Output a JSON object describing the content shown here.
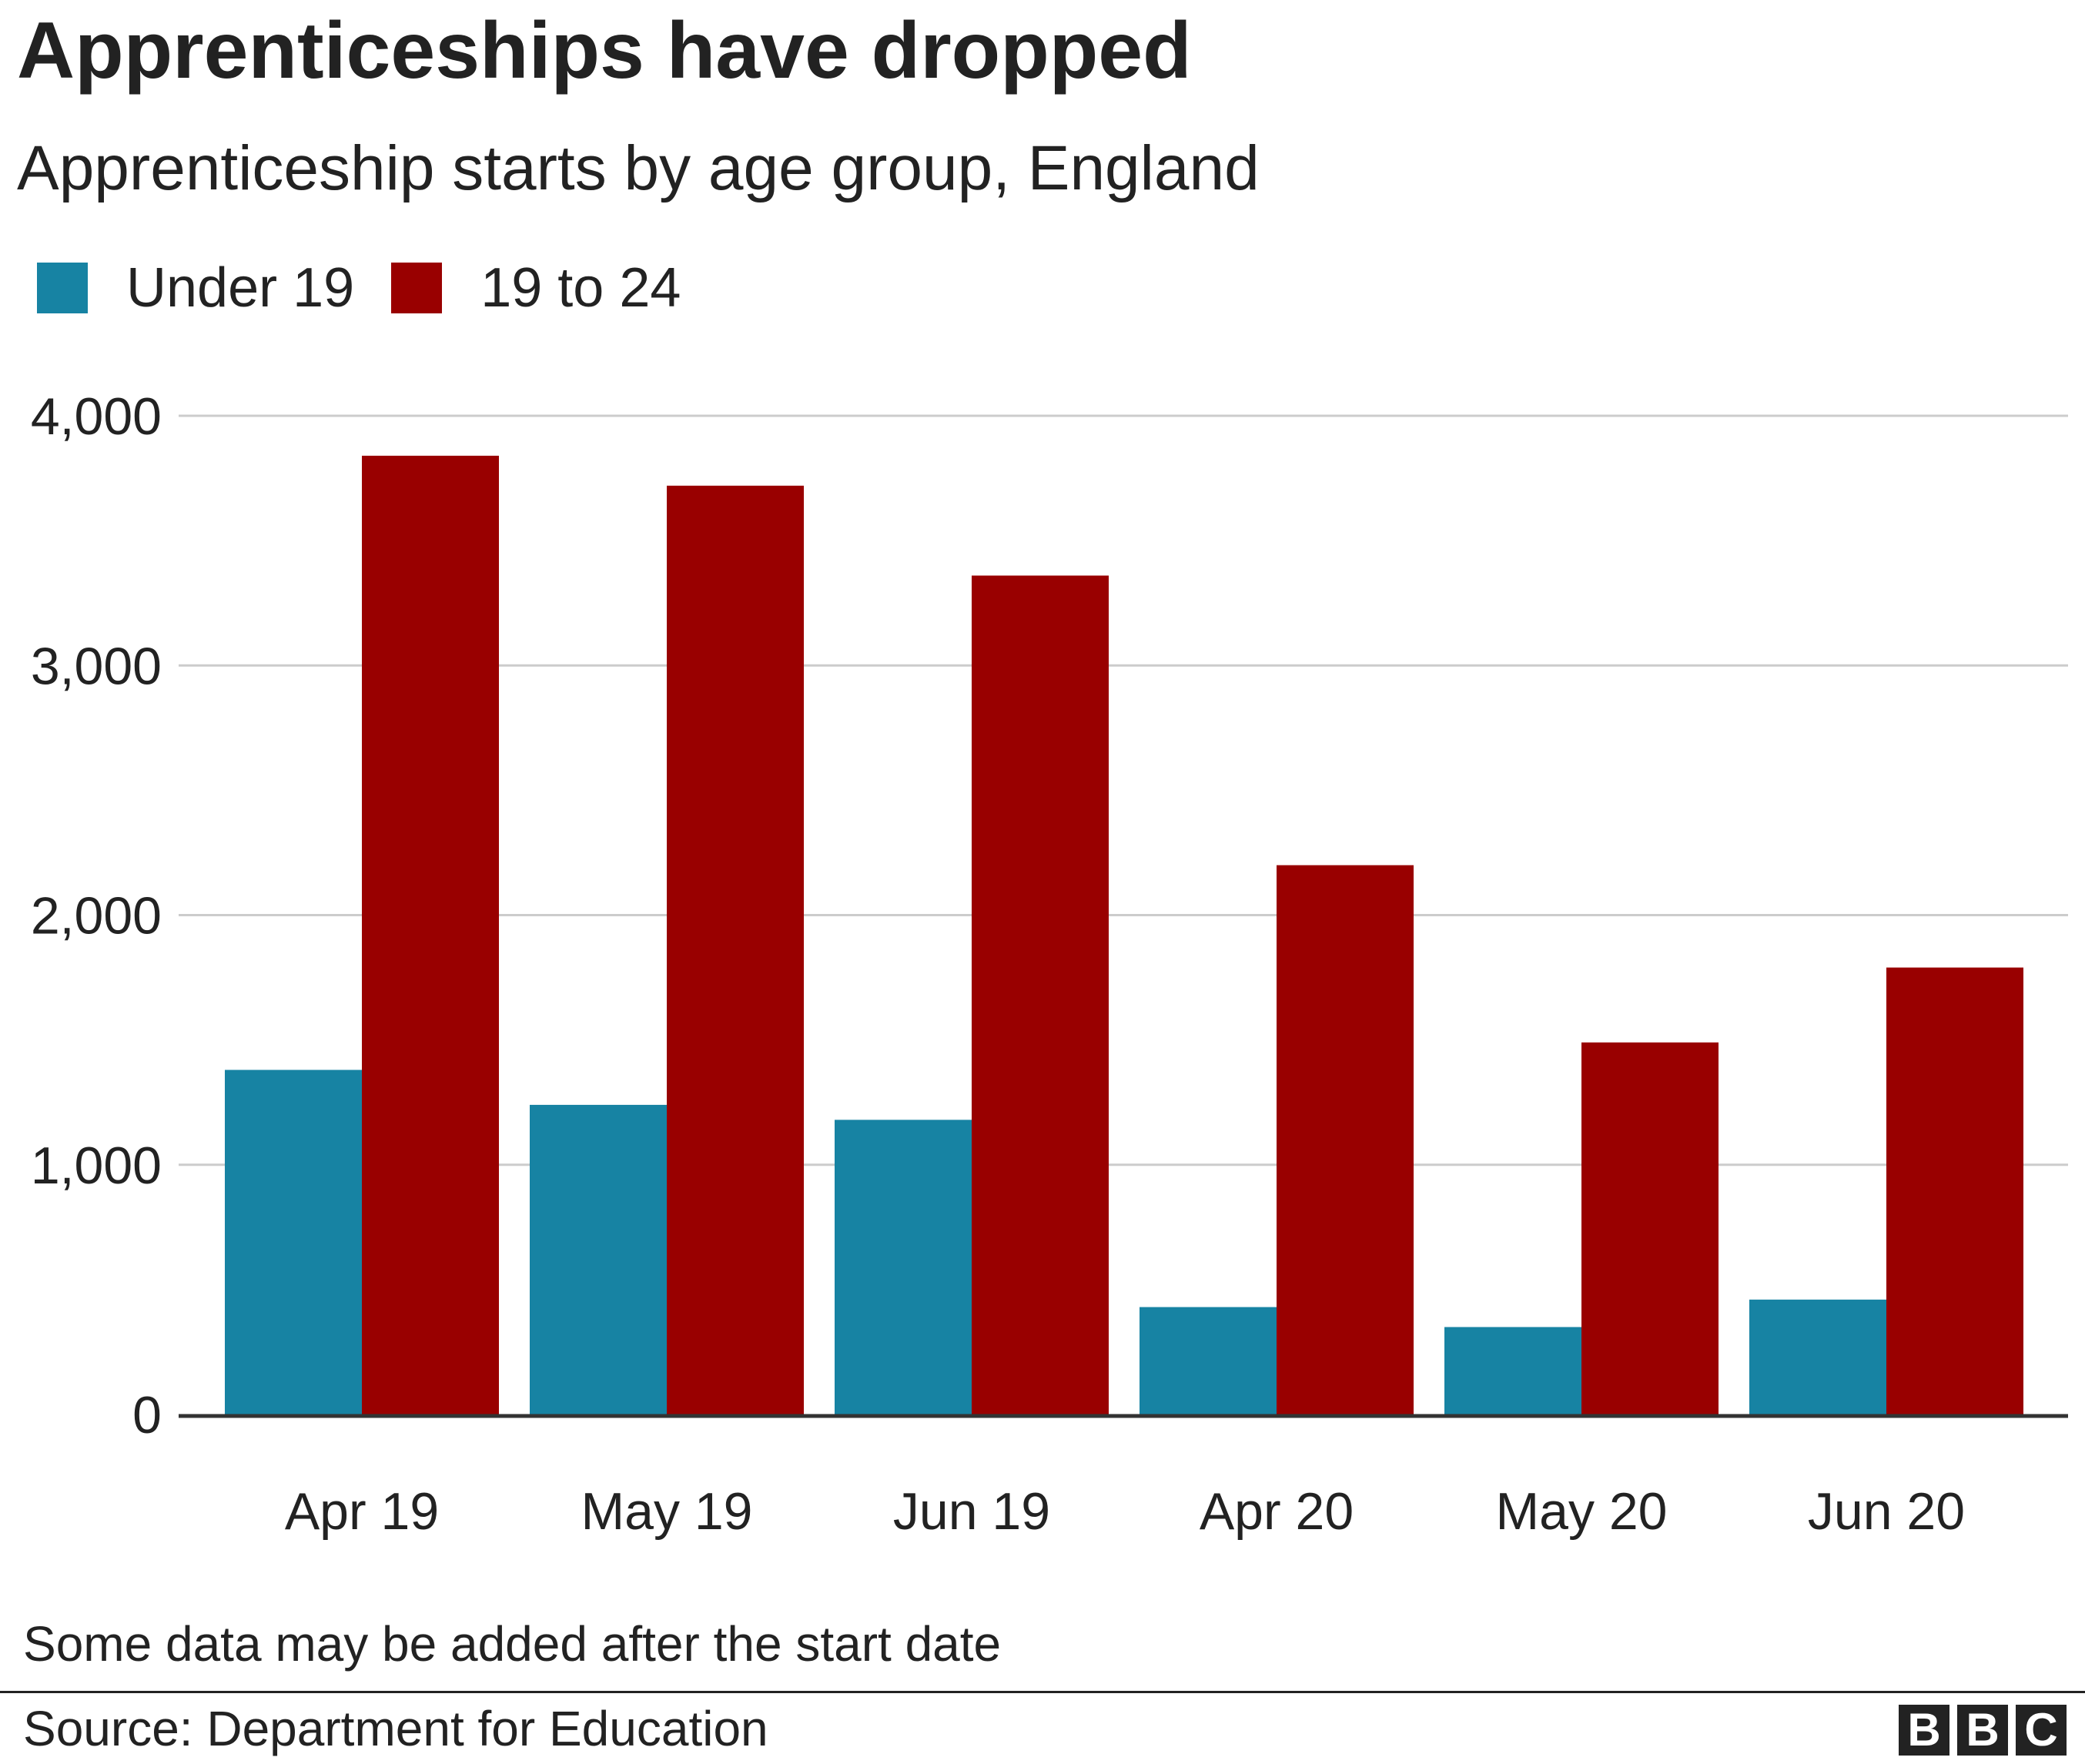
{
  "header": {
    "title": "Apprenticeships have dropped",
    "subtitle": "Apprenticeship starts by age group, England"
  },
  "legend": [
    {
      "label": "Under 19",
      "color": "#1783a3"
    },
    {
      "label": "19 to 24",
      "color": "#990000"
    }
  ],
  "chart_data": {
    "type": "bar",
    "title": "Apprenticeships have dropped",
    "subtitle": "Apprenticeship starts by age group, England",
    "categories": [
      "Apr 19",
      "May 19",
      "Jun 19",
      "Apr 20",
      "May 20",
      "Jun 20"
    ],
    "series": [
      {
        "name": "Under 19",
        "color": "#1783a3",
        "values": [
          1380,
          1240,
          1180,
          430,
          350,
          460
        ]
      },
      {
        "name": "19 to 24",
        "color": "#990000",
        "values": [
          3840,
          3720,
          3360,
          2200,
          1490,
          1790
        ]
      }
    ],
    "ylim": [
      0,
      4000
    ],
    "yticks": [
      0,
      1000,
      2000,
      3000,
      4000
    ],
    "ytick_labels": [
      "0",
      "1,000",
      "2,000",
      "3,000",
      "4,000"
    ],
    "xlabel": "",
    "ylabel": "",
    "grid": true,
    "legend_position": "top-left"
  },
  "footer": {
    "note": "Some data may be added after the start date",
    "source": "Source: Department for Education",
    "logo_letters": [
      "B",
      "B",
      "C"
    ]
  }
}
